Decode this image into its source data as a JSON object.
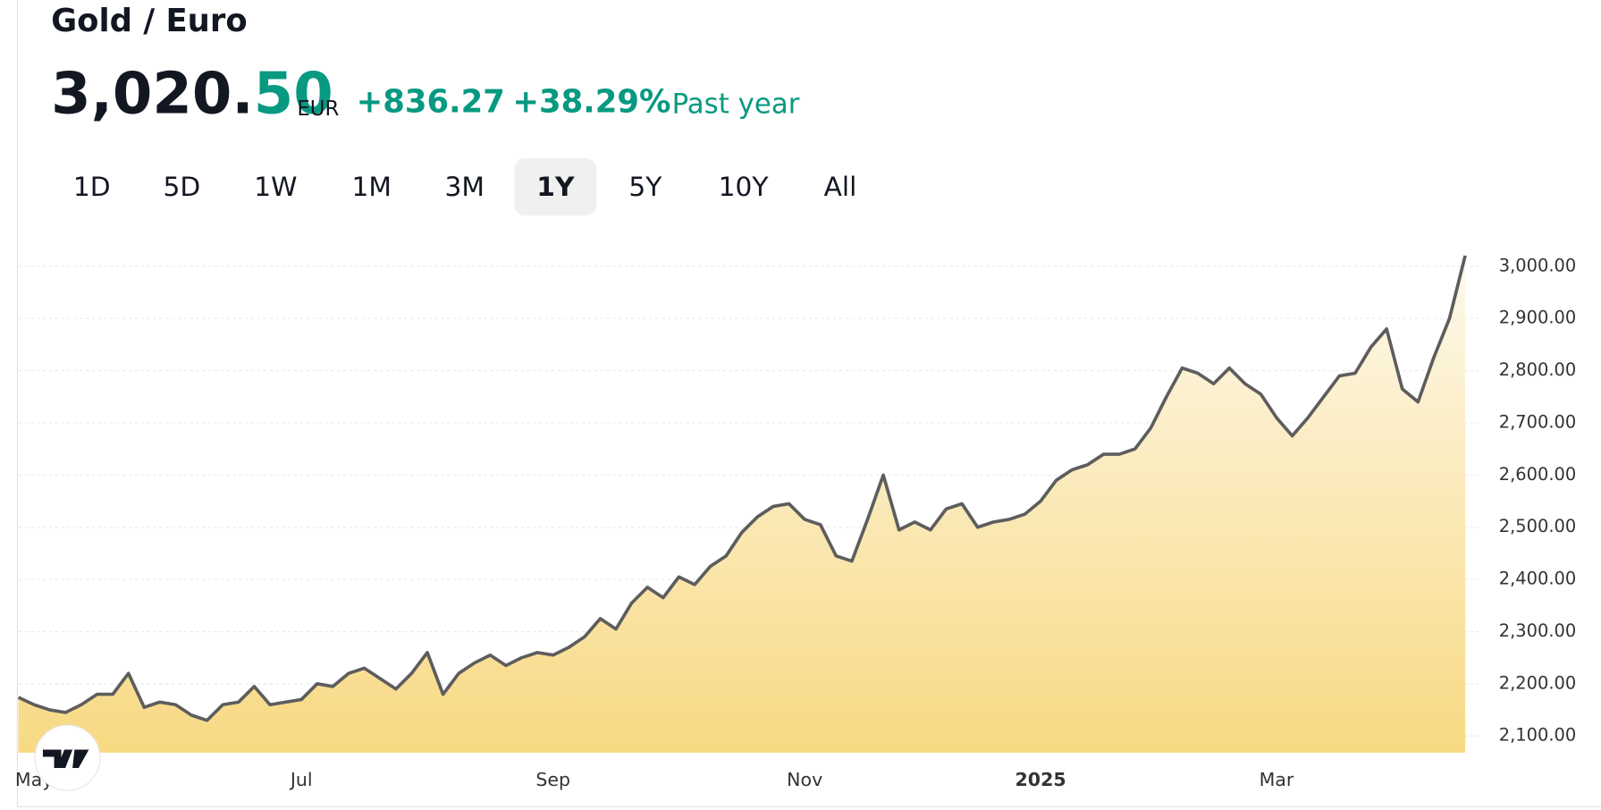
{
  "header": {
    "title": "Gold / Euro",
    "price_main": "3,020.",
    "price_last": "50",
    "currency": "EUR",
    "change": "+836.27",
    "change_percent": "+38.29%",
    "period": "Past year"
  },
  "range_buttons": {
    "labels": [
      "1D",
      "5D",
      "1W",
      "1M",
      "3M",
      "1Y",
      "5Y",
      "10Y",
      "All"
    ],
    "active": "1Y"
  },
  "chart_data": {
    "type": "area",
    "categories": [
      null,
      "May",
      null,
      null,
      null,
      null,
      null,
      null,
      null,
      null,
      null,
      null,
      null,
      null,
      null,
      null,
      null,
      null,
      "Jul",
      null,
      null,
      null,
      null,
      null,
      null,
      null,
      null,
      null,
      null,
      null,
      null,
      null,
      null,
      null,
      "Sep",
      null,
      null,
      null,
      null,
      null,
      null,
      null,
      null,
      null,
      null,
      null,
      null,
      null,
      null,
      null,
      "Nov",
      null,
      null,
      null,
      null,
      null,
      null,
      null,
      null,
      null,
      null,
      null,
      null,
      null,
      null,
      "2025",
      null,
      null,
      null,
      null,
      null,
      null,
      null,
      null,
      null,
      null,
      null,
      null,
      null,
      null,
      "Mar",
      null,
      null,
      null,
      null,
      null,
      null,
      null,
      null,
      null,
      null,
      null,
      null
    ],
    "series": [
      {
        "name": "Gold / Euro",
        "color": "#5d5d5d",
        "values": [
          2174,
          2160,
          2150,
          2145,
          2160,
          2180,
          2180,
          2220,
          2155,
          2165,
          2160,
          2140,
          2130,
          2160,
          2165,
          2195,
          2160,
          2165,
          2170,
          2200,
          2195,
          2220,
          2230,
          2210,
          2190,
          2220,
          2260,
          2180,
          2220,
          2240,
          2255,
          2235,
          2250,
          2260,
          2255,
          2270,
          2290,
          2325,
          2305,
          2355,
          2385,
          2365,
          2405,
          2390,
          2425,
          2445,
          2490,
          2520,
          2540,
          2545,
          2515,
          2505,
          2445,
          2435,
          2515,
          2600,
          2495,
          2510,
          2495,
          2535,
          2545,
          2500,
          2510,
          2515,
          2525,
          2550,
          2590,
          2610,
          2620,
          2640,
          2640,
          2650,
          2690,
          2750,
          2805,
          2795,
          2775,
          2805,
          2775,
          2755,
          2710,
          2675,
          2710,
          2750,
          2790,
          2795,
          2845,
          2880,
          2765,
          2740,
          2825,
          2900,
          3020.5
        ]
      }
    ],
    "fill_top": "#fdf9ec",
    "fill_bottom": "#f8d983",
    "ylim": [
      2068,
      3060
    ],
    "yticks": [
      {
        "value": 2100,
        "label": "2,100.00"
      },
      {
        "value": 2200,
        "label": "2,200.00"
      },
      {
        "value": 2300,
        "label": "2,300.00"
      },
      {
        "value": 2400,
        "label": "2,400.00"
      },
      {
        "value": 2500,
        "label": "2,500.00"
      },
      {
        "value": 2600,
        "label": "2,600.00"
      },
      {
        "value": 2700,
        "label": "2,700.00"
      },
      {
        "value": 2800,
        "label": "2,800.00"
      },
      {
        "value": 2900,
        "label": "2,900.00"
      },
      {
        "value": 3000,
        "label": "3,000.00"
      }
    ],
    "grid": true,
    "y_axis_side": "right"
  }
}
